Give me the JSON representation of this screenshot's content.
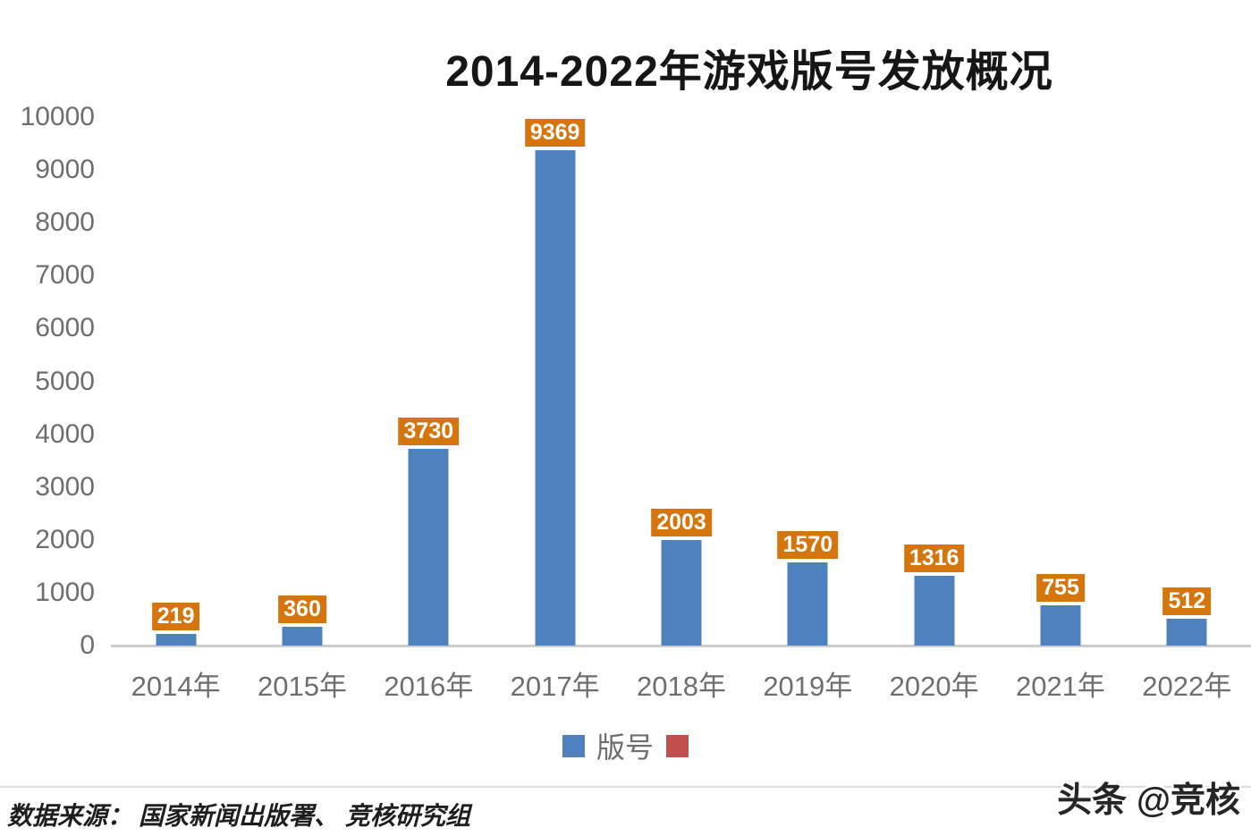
{
  "chart": {
    "title": "2014-2022年游戏版号发放概况"
  },
  "chart_data": {
    "type": "bar",
    "title": "2014-2022年游戏版号发放概况",
    "categories": [
      "2014年",
      "2015年",
      "2016年",
      "2017年",
      "2018年",
      "2019年",
      "2020年",
      "2021年",
      "2022年"
    ],
    "series": [
      {
        "name": "版号",
        "values": [
          219,
          360,
          3730,
          9369,
          2003,
          1570,
          1316,
          755,
          512
        ]
      }
    ],
    "data_labels": [
      "219",
      "360",
      "3730",
      "9369",
      "2003",
      "1570",
      "1316",
      "755",
      "512"
    ],
    "yticks": [
      10000,
      9000,
      8000,
      7000,
      6000,
      5000,
      4000,
      3000,
      2000,
      1000,
      0
    ],
    "ylim": [
      0,
      10000
    ],
    "grid": false,
    "legend_position": "bottom",
    "legend": [
      {
        "label": "版号",
        "color": "#4e81bd"
      },
      {
        "label": "",
        "color": "#c0504d"
      }
    ]
  },
  "colors": {
    "bar": "#4e81bd",
    "data_label_bg": "#d5750e",
    "data_label_text": "#ffffff",
    "axis_text": "#6e6e6e",
    "legend_red": "#c0504d",
    "title_text": "#161616"
  },
  "footer": {
    "source": "数据来源：  国家新闻出版署、  竞核研究组",
    "watermark": "头条 @竞核"
  }
}
